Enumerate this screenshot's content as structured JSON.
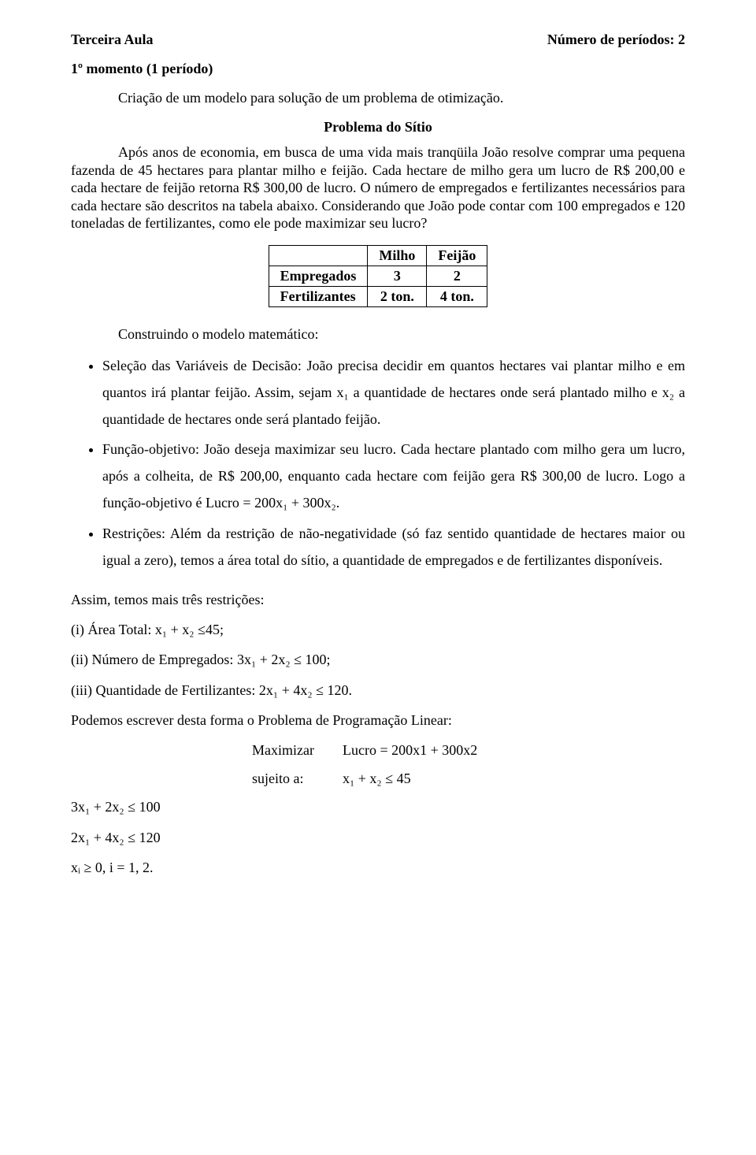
{
  "header": {
    "left": "Terceira Aula",
    "right": "Número de períodos:  2"
  },
  "moment": "1º momento (1 período)",
  "intro_line": "Criação de um modelo para solução de um problema de otimização.",
  "problem_title": "Problema do Sítio",
  "body": "Após anos de economia, em busca de uma vida mais tranqüila João resolve comprar uma pequena fazenda de 45 hectares para plantar milho e feijão.  Cada hectare de milho gera um lucro de R$ 200,00 e cada hectare de feijão retorna R$ 300,00 de lucro.  O número de empregados e fertilizantes necessários para cada hectare são descritos na tabela abaixo.  Considerando que João pode contar com 100 empregados e 120 toneladas de fertilizantes, como ele pode maximizar seu lucro?",
  "table": {
    "columns": [
      "",
      "Milho",
      "Feijão"
    ],
    "rows": [
      [
        "Empregados",
        "3",
        "2"
      ],
      [
        "Fertilizantes",
        "2 ton.",
        "4 ton."
      ]
    ]
  },
  "build_model": "Construindo o modelo matemático:",
  "bullets": {
    "b1": "Seleção das Variáveis de Decisão: João precisa decidir em quantos hectares vai plantar milho e em quantos irá plantar feijão.  Assim, sejam x₁ a quantidade de hectares onde será plantado milho e x₂ a quantidade de hectares onde será plantado feijão.",
    "b2": "Função-objetivo: João deseja maximizar seu lucro.  Cada hectare plantado com milho gera um lucro, após a colheita, de R$ 200,00, enquanto cada hectare com feijão gera R$ 300,00 de lucro.  Logo a função-objetivo é Lucro = 200x₁ + 300x₂.",
    "b3": "Restrições: Além da restrição de não-negatividade (só faz sentido quantidade de hectares maior ou igual a zero), temos a área total do sítio, a quantidade de empregados e de fertilizantes disponíveis."
  },
  "after": {
    "p1": "Assim, temos mais três restrições:",
    "r1": "(i) Área Total: x₁ + x₂ ≤45;",
    "r2": "(ii) Número de Empregados: 3x₁ + 2x₂ ≤ 100;",
    "r3": "(iii) Quantidade de Fertilizantes: 2x₁ + 4x₂ ≤ 120.",
    "p2": "Podemos escrever desta forma o Problema de Programação Linear:"
  },
  "lp": {
    "l1_left": "Maximizar",
    "l1_right": "Lucro = 200x1 + 300x2",
    "l2_left": "sujeito a:",
    "l2_right": "x₁ + x₂ ≤ 45",
    "l3": "3x₁ + 2x₂ ≤ 100",
    "l4": "2x₁ + 4x₂ ≤ 120",
    "l5": "xᵢ ≥ 0, i = 1, 2."
  }
}
